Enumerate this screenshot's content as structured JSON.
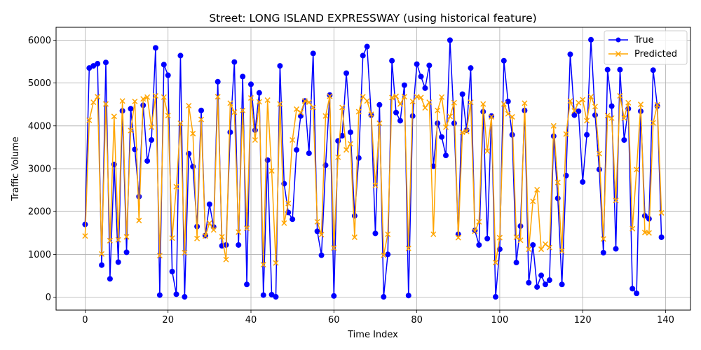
{
  "chart_data": {
    "type": "line",
    "title": "Street: LONG ISLAND EXPRESSWAY (using historical feature)",
    "xlabel": "Time Index",
    "ylabel": "Traffic Volume",
    "xlim": [
      -7,
      146
    ],
    "ylim": [
      -300,
      6300
    ],
    "xticks": [
      0,
      20,
      40,
      60,
      80,
      100,
      120,
      140
    ],
    "yticks": [
      0,
      1000,
      2000,
      3000,
      4000,
      5000,
      6000
    ],
    "grid": true,
    "legend_position": "upper right",
    "series": [
      {
        "name": "True",
        "color": "#0000ff",
        "marker": "circle",
        "values": [
          1700,
          5350,
          5400,
          5450,
          750,
          5480,
          430,
          3100,
          820,
          4350,
          1050,
          4400,
          3450,
          2350,
          4480,
          3180,
          3670,
          5820,
          50,
          5430,
          5180,
          600,
          70,
          5640,
          10,
          3350,
          3050,
          1650,
          4360,
          1440,
          2170,
          1640,
          5030,
          1200,
          1220,
          3850,
          5490,
          1220,
          5150,
          300,
          4970,
          3900,
          4770,
          50,
          3200,
          60,
          10,
          5400,
          2650,
          1980,
          1820,
          3440,
          4230,
          4580,
          3360,
          5690,
          1540,
          980,
          3080,
          4720,
          30,
          3650,
          3770,
          5230,
          3850,
          1900,
          3250,
          5640,
          5850,
          4250,
          1490,
          4490,
          10,
          1000,
          5520,
          4310,
          4120,
          4950,
          40,
          4230,
          5440,
          5150,
          4880,
          5410,
          3060,
          4060,
          3740,
          3310,
          6000,
          4060,
          1470,
          4740,
          3900,
          5350,
          1560,
          1220,
          4330,
          1370,
          4230,
          10,
          1120,
          5520,
          4570,
          3790,
          810,
          1660,
          4360,
          340,
          1220,
          240,
          510,
          300,
          400,
          3760,
          2310,
          300,
          2840,
          5670,
          4250,
          4340,
          2690,
          3790,
          6010,
          4250,
          2980,
          1040,
          5310,
          4460,
          1130,
          5310,
          3670,
          4400,
          200,
          90,
          4340,
          1900,
          1830,
          5300,
          4460,
          1400
        ]
      },
      {
        "name": "Predicted",
        "color": "#ffa500",
        "marker": "x",
        "values": [
          1430,
          4130,
          4550,
          4680,
          1010,
          4510,
          1320,
          4220,
          1340,
          4580,
          1410,
          3890,
          4570,
          1790,
          4630,
          4670,
          3970,
          4700,
          970,
          4670,
          4240,
          1380,
          2580,
          4060,
          1040,
          4470,
          3820,
          1370,
          4150,
          1430,
          1730,
          1570,
          4680,
          1410,
          880,
          4530,
          4320,
          1520,
          4360,
          1610,
          4650,
          3670,
          4560,
          760,
          4600,
          2950,
          800,
          4510,
          1730,
          2190,
          3670,
          4390,
          4310,
          4580,
          4550,
          4430,
          1760,
          1460,
          4230,
          4690,
          1150,
          3270,
          4430,
          3440,
          3580,
          1400,
          4330,
          4680,
          4580,
          4270,
          2610,
          4060,
          980,
          1470,
          4660,
          4690,
          4510,
          4680,
          1140,
          4570,
          4680,
          4660,
          4420,
          4550,
          1470,
          4360,
          4670,
          3970,
          4220,
          4540,
          1390,
          3850,
          3870,
          4550,
          1540,
          1760,
          4510,
          3410,
          4210,
          810,
          1390,
          4510,
          4280,
          4210,
          1400,
          1330,
          4530,
          1120,
          2240,
          2510,
          1120,
          1240,
          1160,
          4000,
          2680,
          1080,
          3810,
          4580,
          4350,
          4540,
          4610,
          4120,
          4680,
          4450,
          3350,
          1360,
          4240,
          4180,
          2260,
          4700,
          4180,
          4540,
          1600,
          2980,
          4500,
          1510,
          1500,
          4070,
          4490,
          1970
        ]
      }
    ]
  }
}
